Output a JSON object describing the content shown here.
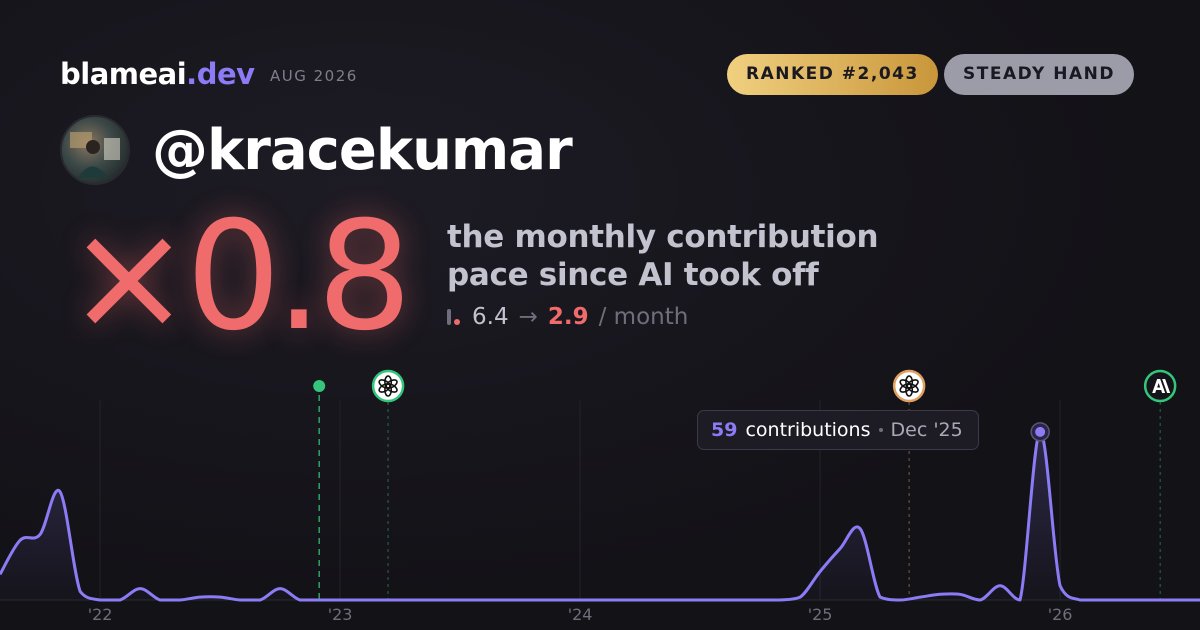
{
  "brand": {
    "name": "blameai",
    "tld": ".dev",
    "date": "AUG 2026"
  },
  "badges": [
    {
      "text": "RANKED #2,043",
      "color": "gold"
    },
    {
      "text": "STEADY HAND",
      "color": "#9c9ba8"
    }
  ],
  "user": "@kracekumar",
  "multiplier": "×0.8",
  "headline": [
    "the monthly contribution",
    "pace since AI took off"
  ],
  "pace": {
    "before": 6.4,
    "arrow": "→",
    "after": 2.9,
    "unit": "/ month"
  },
  "tooltip": {
    "label": "contributions",
    "date": "Dec '25"
  },
  "chart_data": {
    "type": "line",
    "x": [
      2021.583,
      2021.667,
      2021.75,
      2021.833,
      2021.917,
      2022,
      2022.083,
      2022.167,
      2022.25,
      2022.333,
      2022.417,
      2022.5,
      2022.583,
      2022.667,
      2022.75,
      2022.833,
      2022.917,
      2023,
      2023.083,
      2023.167,
      2023.25,
      2023.333,
      2023.417,
      2023.5,
      2023.583,
      2023.667,
      2023.75,
      2023.833,
      2023.917,
      2024,
      2024.083,
      2024.167,
      2024.25,
      2024.333,
      2024.417,
      2024.5,
      2024.583,
      2024.667,
      2024.75,
      2024.833,
      2024.917,
      2025,
      2025.083,
      2025.167,
      2025.25,
      2025.333,
      2025.417,
      2025.5,
      2025.583,
      2025.667,
      2025.75,
      2025.833,
      2025.917,
      2026,
      2026.083,
      2026.167,
      2026.25,
      2026.333,
      2026.417,
      2026.5,
      2026.583
    ],
    "series": [
      {
        "name": "contributions",
        "color": "#8b7cf6",
        "values": [
          9,
          21,
          23,
          38,
          3,
          0,
          0,
          4,
          0,
          0,
          1,
          1,
          0,
          0,
          4,
          0,
          0,
          0,
          0,
          0,
          0,
          0,
          0,
          0,
          0,
          0,
          0,
          0,
          0,
          0,
          0,
          0,
          0,
          0,
          0,
          0,
          0,
          0,
          0,
          0,
          1,
          10,
          18,
          25,
          1,
          0,
          1,
          2,
          2,
          0,
          5,
          0,
          59,
          5,
          0,
          0,
          0,
          0,
          0,
          0,
          0
        ]
      }
    ],
    "xlim": [
      2021.583,
      2026.583
    ],
    "ylim": [
      0,
      80
    ],
    "xticks": [
      {
        "value": 2022,
        "label": "'22"
      },
      {
        "value": 2023,
        "label": "'23"
      },
      {
        "value": 2024,
        "label": "'24"
      },
      {
        "value": 2025,
        "label": "'25"
      },
      {
        "value": 2026,
        "label": "'26"
      }
    ],
    "grid": true,
    "events": [
      {
        "x": 2022.913,
        "marker": "dot",
        "color": "#34c77b"
      },
      {
        "x": 2023.2,
        "marker": "openai",
        "color": "#34c77b"
      },
      {
        "x": 2025.371,
        "marker": "openai",
        "color": "#e0a060"
      },
      {
        "x": 2026.417,
        "marker": "anthropic",
        "color": "#34c77b"
      }
    ]
  }
}
